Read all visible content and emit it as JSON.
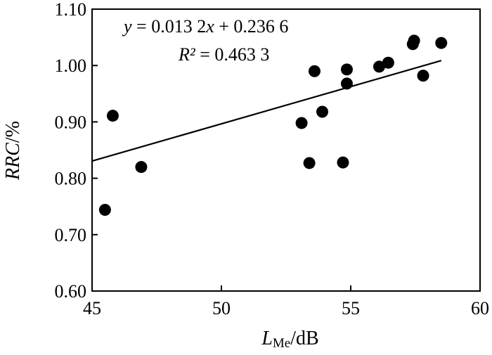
{
  "chart_data": {
    "type": "scatter",
    "title": "",
    "xlabel": {
      "main": "L",
      "subscript": "Me",
      "unit": "/dB"
    },
    "ylabel": {
      "main": "RRC",
      "unit": "/%"
    },
    "xlim": [
      45,
      60
    ],
    "ylim": [
      0.6,
      1.1
    ],
    "x_ticks": [
      45,
      50,
      55,
      60
    ],
    "x_tick_labels": [
      "45",
      "50",
      "55",
      "60"
    ],
    "y_ticks": [
      0.6,
      0.7,
      0.8,
      0.9,
      1.0,
      1.1
    ],
    "y_tick_labels": [
      "0.60",
      "0.70",
      "0.80",
      "0.90",
      "1.00",
      "1.10"
    ],
    "grid": false,
    "series": [
      {
        "type": "scatter",
        "marker_color": "#000000",
        "x": [
          45.5,
          45.8,
          46.9,
          53.1,
          53.4,
          53.6,
          53.9,
          54.7,
          54.85,
          54.85,
          56.1,
          56.45,
          57.4,
          57.45,
          57.8,
          58.5
        ],
        "y": [
          0.744,
          0.911,
          0.82,
          0.898,
          0.827,
          0.99,
          0.918,
          0.828,
          0.968,
          0.993,
          0.998,
          1.005,
          1.038,
          1.044,
          0.982,
          1.04
        ]
      }
    ],
    "trendline": {
      "slope": 0.0132,
      "intercept": 0.2366,
      "x_range": [
        45,
        58.5
      ],
      "color": "#000000"
    },
    "annotations": {
      "equation": {
        "lhs": "y",
        "middle": " = 0.013 2",
        "x_var": "x",
        "rhs": " + 0.236 6"
      },
      "r_squared": {
        "symbol": "R²",
        "rest": " = 0.463 3"
      }
    }
  }
}
